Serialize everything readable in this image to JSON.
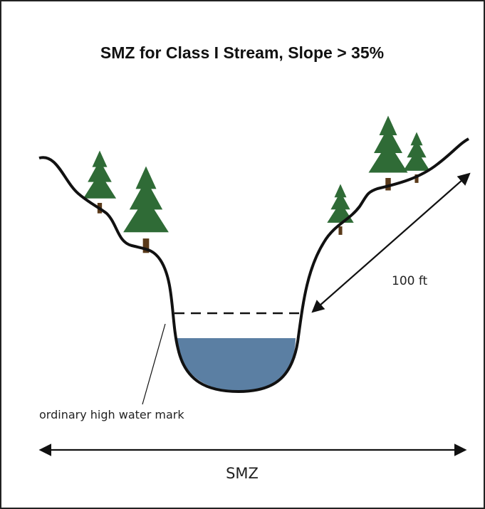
{
  "title": "SMZ for Class I Stream, Slope > 35%",
  "labels": {
    "distance": "100 ft",
    "water_mark": "ordinary high water mark",
    "zone": "SMZ"
  }
}
